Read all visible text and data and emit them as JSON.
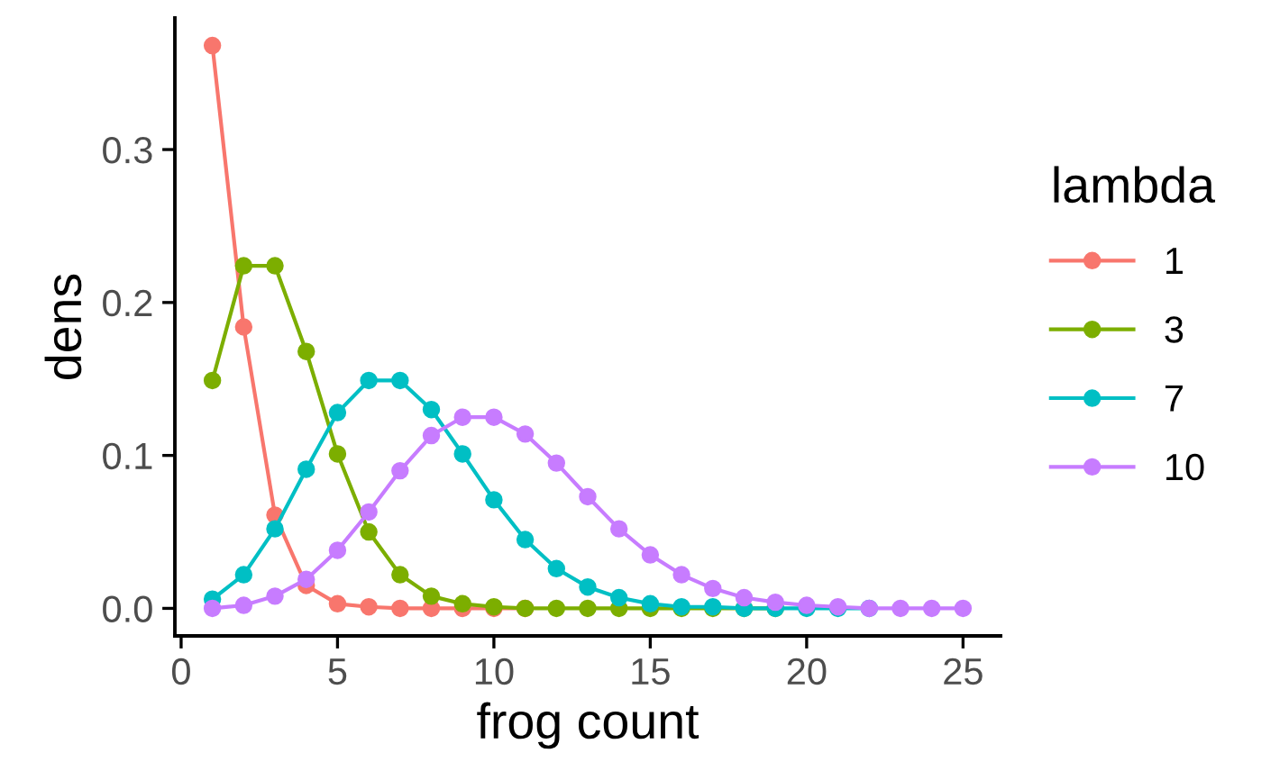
{
  "chart_data": {
    "type": "line",
    "xlabel": "frog count",
    "ylabel": "dens",
    "legend_title": "lambda",
    "legend": "right",
    "grid": false,
    "marker": "circle",
    "line_style": "solid",
    "x": [
      1,
      2,
      3,
      4,
      5,
      6,
      7,
      8,
      9,
      10,
      11,
      12,
      13,
      14,
      15,
      16,
      17,
      18,
      19,
      20,
      21,
      22,
      23,
      24,
      25
    ],
    "xlim": [
      -0.2,
      26.2
    ],
    "xticks": [
      0,
      5,
      10,
      15,
      20,
      25
    ],
    "ylim": [
      -0.018,
      0.386
    ],
    "yticks": [
      {
        "value": 0,
        "label": "0.0"
      },
      {
        "value": 0.1,
        "label": "0.1"
      },
      {
        "value": 0.2,
        "label": "0.2"
      },
      {
        "value": 0.3,
        "label": "0.3"
      }
    ],
    "series": [
      {
        "name": "1",
        "color": "#f8766d",
        "values": [
          0.368,
          0.184,
          0.061,
          0.015,
          0.003,
          0.001,
          0,
          0,
          0,
          0,
          0,
          null,
          null,
          null,
          null,
          null,
          null,
          null,
          null,
          null,
          null,
          null,
          null,
          null,
          null
        ]
      },
      {
        "name": "3",
        "color": "#7cae00",
        "values": [
          0.149,
          0.224,
          0.224,
          0.168,
          0.101,
          0.05,
          0.022,
          0.008,
          0.003,
          0.001,
          0,
          0,
          0,
          0,
          0,
          0,
          0,
          0,
          0,
          null,
          null,
          null,
          null,
          null,
          null
        ]
      },
      {
        "name": "7",
        "color": "#00bfc4",
        "values": [
          0.006,
          0.022,
          0.052,
          0.091,
          0.128,
          0.149,
          0.149,
          0.13,
          0.101,
          0.071,
          0.045,
          0.026,
          0.014,
          0.007,
          0.003,
          0.001,
          0.001,
          0,
          0,
          0,
          0,
          0,
          null,
          null,
          null
        ]
      },
      {
        "name": "10",
        "color": "#c77cff",
        "values": [
          0,
          0.002,
          0.008,
          0.019,
          0.038,
          0.063,
          0.09,
          0.113,
          0.125,
          0.125,
          0.114,
          0.095,
          0.073,
          0.052,
          0.035,
          0.022,
          0.013,
          0.007,
          0.004,
          0.002,
          0.001,
          0,
          0,
          0,
          0
        ]
      }
    ]
  }
}
